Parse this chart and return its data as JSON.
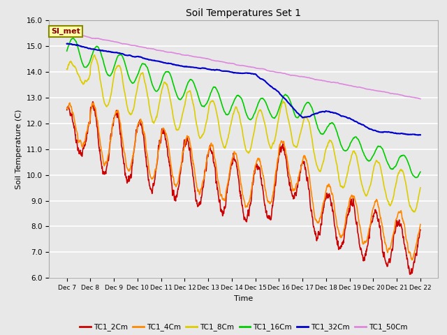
{
  "title": "Soil Temperatures Set 1",
  "xlabel": "Time",
  "ylabel": "Soil Temperature (C)",
  "ylim": [
    6.0,
    16.0
  ],
  "yticks": [
    6.0,
    7.0,
    8.0,
    9.0,
    10.0,
    11.0,
    12.0,
    13.0,
    14.0,
    15.0,
    16.0
  ],
  "bg_color": "#e8e8e8",
  "plot_bg_color": "#e8e8e8",
  "annotation_text": "SI_met",
  "annotation_box_color": "#ffffaa",
  "annotation_box_edge_color": "#888800",
  "grid_color": "#ffffff",
  "x_labels": [
    "Dec 7",
    "Dec 8",
    "Dec 9",
    "Dec 10",
    "Dec 11",
    "Dec 12",
    "Dec 13",
    "Dec 14",
    "Dec 15",
    "Dec 16",
    "Dec 17",
    "Dec 18",
    "Dec 19",
    "Dec 20",
    "Dec 21",
    "Dec 22"
  ],
  "series": [
    {
      "label": "TC1_2Cm",
      "color": "#cc0000",
      "lw": 1.2
    },
    {
      "label": "TC1_4Cm",
      "color": "#ff8800",
      "lw": 1.2
    },
    {
      "label": "TC1_8Cm",
      "color": "#ddcc00",
      "lw": 1.2
    },
    {
      "label": "TC1_16Cm",
      "color": "#00cc00",
      "lw": 1.2
    },
    {
      "label": "TC1_32Cm",
      "color": "#0000cc",
      "lw": 1.5
    },
    {
      "label": "TC1_50Cm",
      "color": "#dd88dd",
      "lw": 1.2
    }
  ]
}
